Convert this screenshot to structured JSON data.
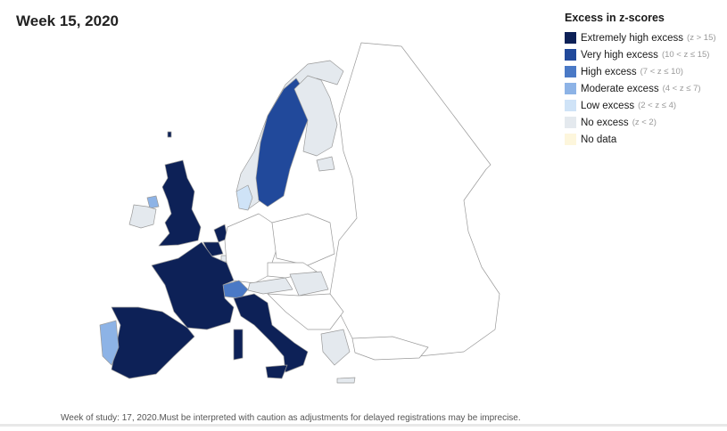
{
  "title": "Week 15, 2020",
  "legend": {
    "title": "Excess in z-scores",
    "items": [
      {
        "label": "Extremely high excess",
        "range": "(z > 15)",
        "color": "#0d2157"
      },
      {
        "label": "Very high excess",
        "range": "(10 < z ≤ 15)",
        "color": "#21499b"
      },
      {
        "label": "High excess",
        "range": "(7 < z ≤ 10)",
        "color": "#4a79c6"
      },
      {
        "label": "Moderate excess",
        "range": "(4 < z ≤ 7)",
        "color": "#8db3e6"
      },
      {
        "label": "Low excess",
        "range": "(2 < z ≤ 4)",
        "color": "#cfe3f7"
      },
      {
        "label": "No excess",
        "range": "(z < 2)",
        "color": "#e4e9ee"
      },
      {
        "label": "No data",
        "range": "",
        "color": "#fdf6dc"
      }
    ]
  },
  "regions": [
    {
      "name": "United Kingdom",
      "category": "Extremely high excess"
    },
    {
      "name": "Ireland",
      "category": "No excess"
    },
    {
      "name": "Northern Ireland",
      "category": "Moderate excess"
    },
    {
      "name": "France",
      "category": "Extremely high excess"
    },
    {
      "name": "Belgium",
      "category": "Extremely high excess"
    },
    {
      "name": "Netherlands",
      "category": "Extremely high excess"
    },
    {
      "name": "Spain",
      "category": "Extremely high excess"
    },
    {
      "name": "Italy",
      "category": "Extremely high excess"
    },
    {
      "name": "Portugal",
      "category": "Moderate excess"
    },
    {
      "name": "Switzerland",
      "category": "High excess"
    },
    {
      "name": "Sweden",
      "category": "Very high excess"
    },
    {
      "name": "Norway",
      "category": "No excess"
    },
    {
      "name": "Finland",
      "category": "No excess"
    },
    {
      "name": "Denmark",
      "category": "Low excess"
    },
    {
      "name": "Estonia",
      "category": "No excess"
    },
    {
      "name": "Austria",
      "category": "No excess"
    },
    {
      "name": "Hungary",
      "category": "No excess"
    },
    {
      "name": "Greece",
      "category": "No excess"
    },
    {
      "name": "Luxembourg",
      "category": "No excess"
    }
  ],
  "footnote": "Week of study: 17, 2020.Must be interpreted with caution as adjustments for delayed registrations may be imprecise."
}
